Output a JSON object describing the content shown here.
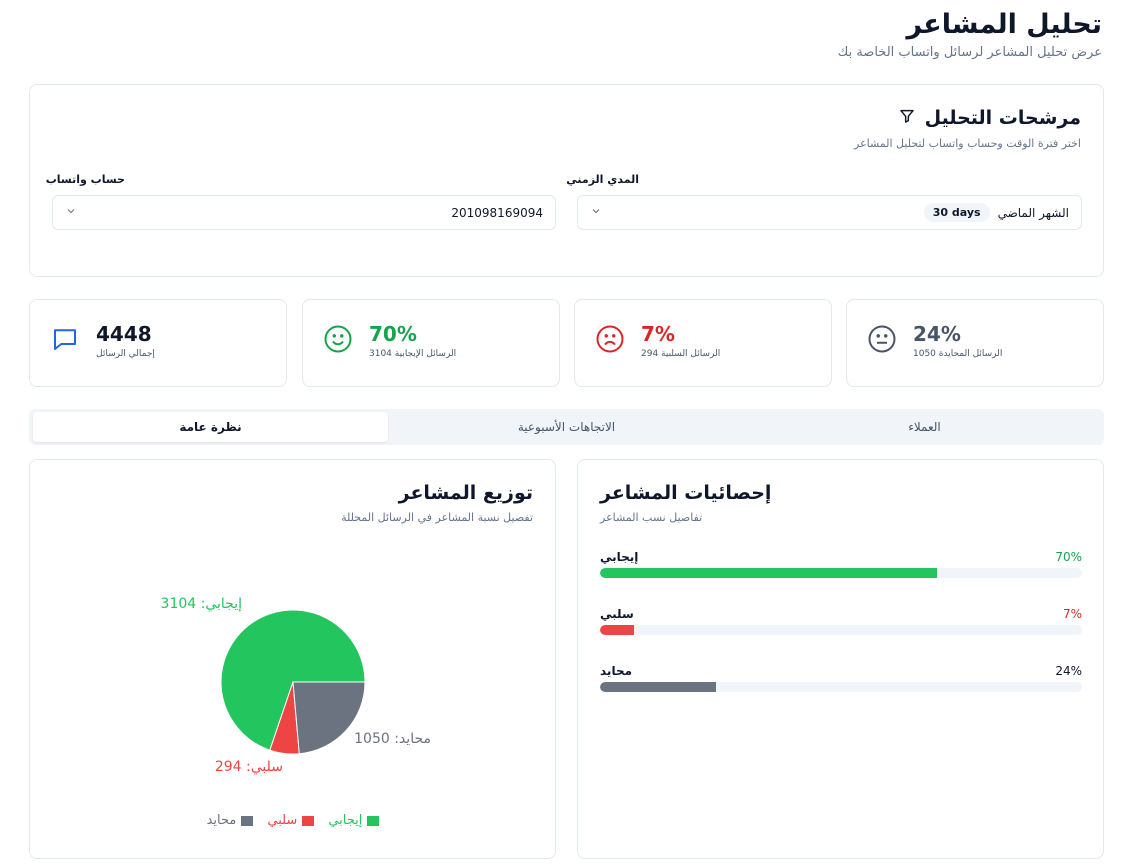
{
  "header": {
    "title": "تحليل المشاعر",
    "subtitle": "عرض تحليل المشاعر لرسائل واتساب الخاصة بك"
  },
  "filters": {
    "title": "مرشحات التحليل",
    "description": "اختر فترة الوقت وحساب واتساب لتحليل المشاعر",
    "period_label": "المدي الزمني",
    "period_value": "الشهر الماضي",
    "period_badge": "30 days",
    "account_label": "حساب واتساب",
    "account_value": "201098169094",
    "icons": {
      "filter": "filter-icon",
      "chevron": "chevron-down-icon"
    }
  },
  "stats": [
    {
      "value": "24%",
      "label": "الرسائل المحايدة 1050",
      "color": "#475569",
      "icon": "neutral-face-icon"
    },
    {
      "value": "7%",
      "label": "الرسائل السلبية 294",
      "color": "#dc2626",
      "icon": "sad-face-icon"
    },
    {
      "value": "70%",
      "label": "الرسائل الإيجابية 3104",
      "color": "#16a34a",
      "icon": "smile-face-icon"
    },
    {
      "value": "4448",
      "label": "إجمالي الرسائل",
      "color": "#0f172a",
      "icon": "message-icon"
    }
  ],
  "tabs": [
    {
      "label": "العملاء"
    },
    {
      "label": "الاتجاهات الأسبوعية"
    },
    {
      "label": "نظرة عامة",
      "active": true
    }
  ],
  "stats_panel": {
    "title": "إحصائيات المشاعر",
    "description": "تفاصيل نسب المشاعر",
    "rows": [
      {
        "name": "إيجابي",
        "percent": "70%",
        "fraction": 0.7,
        "color": "#22c55e",
        "pct_color": "#16a34a"
      },
      {
        "name": "سلبي",
        "percent": "7%",
        "fraction": 0.07,
        "color": "#ef4444",
        "pct_color": "#dc2626"
      },
      {
        "name": "محايد",
        "percent": "24%",
        "fraction": 0.24,
        "color": "#6b7280",
        "pct_color": "#0f172a"
      }
    ]
  },
  "distribution_panel": {
    "title": "توزيع المشاعر",
    "description": "تفصيل نسبة المشاعر في الرسائل المحللة"
  },
  "chart_data": {
    "type": "pie",
    "categories": [
      "إيجابي",
      "سلبي",
      "محايد"
    ],
    "values": [
      3104,
      294,
      1050
    ],
    "slice_labels": [
      "إيجابي: 3104",
      "سلبي: 294",
      "محايد: 1050"
    ],
    "colors": [
      "#22c55e",
      "#ef4444",
      "#6b7280"
    ],
    "legend": [
      "محايد",
      "سلبي",
      "إيجابي"
    ],
    "legend_colors": [
      "#6b7280",
      "#ef4444",
      "#22c55e"
    ],
    "legend_position": "bottom"
  }
}
